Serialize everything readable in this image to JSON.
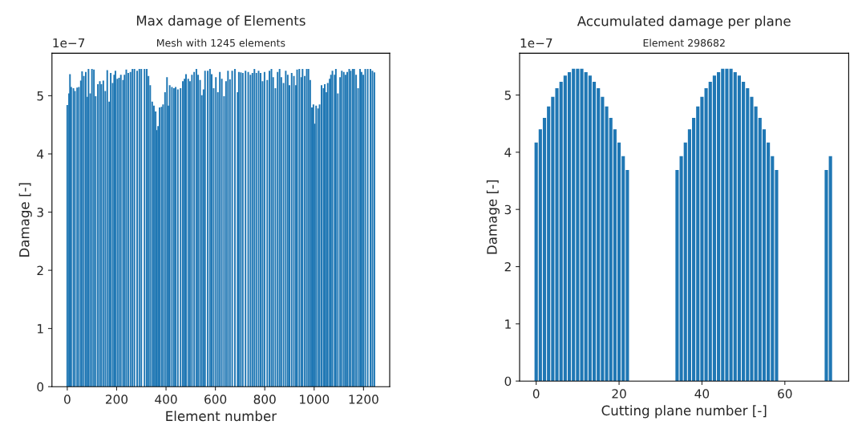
{
  "chart_data": [
    {
      "type": "bar",
      "title": "Max damage of Elements",
      "subtitle": "Mesh with 1245 elements",
      "xlabel": "Element number",
      "ylabel": "Damage [-]",
      "annotations": [
        "1e−7"
      ],
      "color": "#1f77b4",
      "x": [
        0,
        7,
        11,
        16,
        25,
        31,
        40,
        47,
        55,
        60,
        67,
        75,
        82,
        86,
        93,
        100,
        108,
        115,
        124,
        132,
        138,
        146,
        154,
        162,
        170,
        176,
        184,
        190,
        195,
        203,
        210,
        217,
        226,
        232,
        239,
        247,
        256,
        264,
        272,
        283,
        292,
        300,
        313,
        322,
        329,
        336,
        344,
        351,
        358,
        362,
        368,
        374,
        382,
        388,
        396,
        404,
        410,
        415,
        424,
        432,
        439,
        448,
        459,
        468,
        475,
        481,
        490,
        497,
        505,
        514,
        523,
        530,
        538,
        545,
        552,
        558,
        569,
        578,
        585,
        593,
        602,
        610,
        618,
        626,
        635,
        643,
        651,
        659,
        668,
        679,
        690,
        695,
        703,
        711,
        722,
        733,
        742,
        750,
        758,
        766,
        775,
        783,
        791,
        799,
        810,
        819,
        827,
        834,
        843,
        852,
        860,
        867,
        876,
        885,
        893,
        900,
        909,
        918,
        926,
        931,
        940,
        948,
        953,
        962,
        970,
        977,
        984,
        991,
        997,
        1002,
        1008,
        1016,
        1022,
        1030,
        1038,
        1043,
        1050,
        1055,
        1063,
        1068,
        1074,
        1083,
        1088,
        1096,
        1105,
        1112,
        1120,
        1127,
        1134,
        1142,
        1148,
        1156,
        1162,
        1170,
        1178,
        1186,
        1192,
        1199,
        1207,
        1217,
        1228,
        1236,
        1244
      ],
      "values": [
        4.84,
        5.04,
        5.37,
        5.15,
        5.13,
        5.08,
        5.14,
        5.15,
        5.26,
        5.42,
        5.34,
        5.41,
        4.98,
        5.46,
        5.04,
        5.46,
        5.45,
        4.99,
        5.2,
        5.25,
        5.2,
        5.26,
        5.08,
        5.44,
        4.9,
        5.39,
        5.22,
        5.36,
        5.43,
        5.29,
        5.31,
        5.36,
        5.27,
        5.36,
        5.45,
        5.39,
        5.41,
        5.46,
        5.46,
        5.43,
        5.46,
        5.46,
        5.46,
        5.46,
        5.34,
        5.18,
        4.9,
        4.83,
        4.73,
        4.41,
        4.48,
        4.8,
        4.81,
        4.85,
        5.06,
        5.32,
        4.83,
        5.18,
        5.15,
        5.13,
        5.15,
        5.11,
        5.13,
        5.25,
        5.29,
        5.37,
        5.29,
        5.25,
        5.36,
        5.41,
        5.46,
        5.36,
        5.27,
        5.01,
        5.11,
        5.43,
        5.43,
        5.46,
        5.37,
        5.13,
        5.32,
        5.06,
        5.41,
        5.29,
        4.99,
        5.25,
        5.43,
        5.28,
        5.43,
        5.46,
        5.06,
        5.41,
        5.4,
        5.39,
        5.43,
        5.41,
        5.36,
        5.39,
        5.46,
        5.39,
        5.43,
        5.39,
        5.25,
        5.41,
        5.27,
        5.43,
        5.46,
        5.32,
        5.13,
        5.41,
        5.46,
        5.32,
        5.22,
        5.43,
        5.36,
        5.18,
        5.39,
        5.34,
        5.18,
        5.45,
        5.46,
        5.32,
        5.46,
        5.34,
        5.46,
        5.46,
        5.27,
        4.8,
        4.85,
        4.52,
        4.83,
        4.78,
        4.85,
        5.18,
        5.13,
        5.2,
        5.06,
        5.22,
        5.29,
        5.36,
        5.43,
        5.36,
        5.46,
        5.04,
        5.32,
        5.43,
        5.41,
        5.36,
        5.41,
        5.46,
        5.43,
        5.46,
        5.46,
        5.36,
        5.13,
        5.46,
        5.41,
        5.36,
        5.46,
        5.46,
        5.46,
        5.43,
        5.4
      ],
      "xlim": [
        -62,
        1306
      ],
      "xticks": [
        0,
        200,
        400,
        600,
        800,
        1000,
        1200
      ],
      "ylim": [
        0,
        5.73
      ],
      "yticks": [
        0,
        1,
        2,
        3,
        4,
        5
      ],
      "grid": false,
      "legend": false
    },
    {
      "type": "bar",
      "title": "Accumulated damage per plane",
      "subtitle": "Element 298682",
      "xlabel": "Cutting plane number [-]",
      "ylabel": "Damage [-]",
      "annotations": [
        "1e−7"
      ],
      "color": "#1f77b4",
      "x": [
        0,
        1,
        2,
        3,
        4,
        5,
        6,
        7,
        8,
        9,
        10,
        11,
        12,
        13,
        14,
        15,
        16,
        17,
        18,
        19,
        20,
        21,
        22,
        34,
        35,
        36,
        37,
        38,
        39,
        40,
        41,
        42,
        43,
        44,
        45,
        46,
        47,
        48,
        49,
        50,
        51,
        52,
        53,
        54,
        55,
        56,
        57,
        58,
        70,
        71
      ],
      "values": [
        4.17,
        4.4,
        4.6,
        4.8,
        4.97,
        5.12,
        5.23,
        5.34,
        5.4,
        5.46,
        5.46,
        5.46,
        5.4,
        5.34,
        5.23,
        5.12,
        4.97,
        4.8,
        4.6,
        4.4,
        4.17,
        3.93,
        3.69,
        3.69,
        3.93,
        4.17,
        4.4,
        4.6,
        4.8,
        4.97,
        5.12,
        5.23,
        5.34,
        5.4,
        5.46,
        5.46,
        5.46,
        5.4,
        5.34,
        5.23,
        5.12,
        4.97,
        4.8,
        4.6,
        4.4,
        4.17,
        3.93,
        3.69,
        3.69,
        3.93
      ],
      "xlim": [
        -4,
        75.4
      ],
      "xticks": [
        0,
        20,
        40,
        60
      ],
      "ylim": [
        0,
        5.73
      ],
      "yticks": [
        0,
        1,
        2,
        3,
        4,
        5
      ],
      "grid": false,
      "legend": false
    }
  ]
}
